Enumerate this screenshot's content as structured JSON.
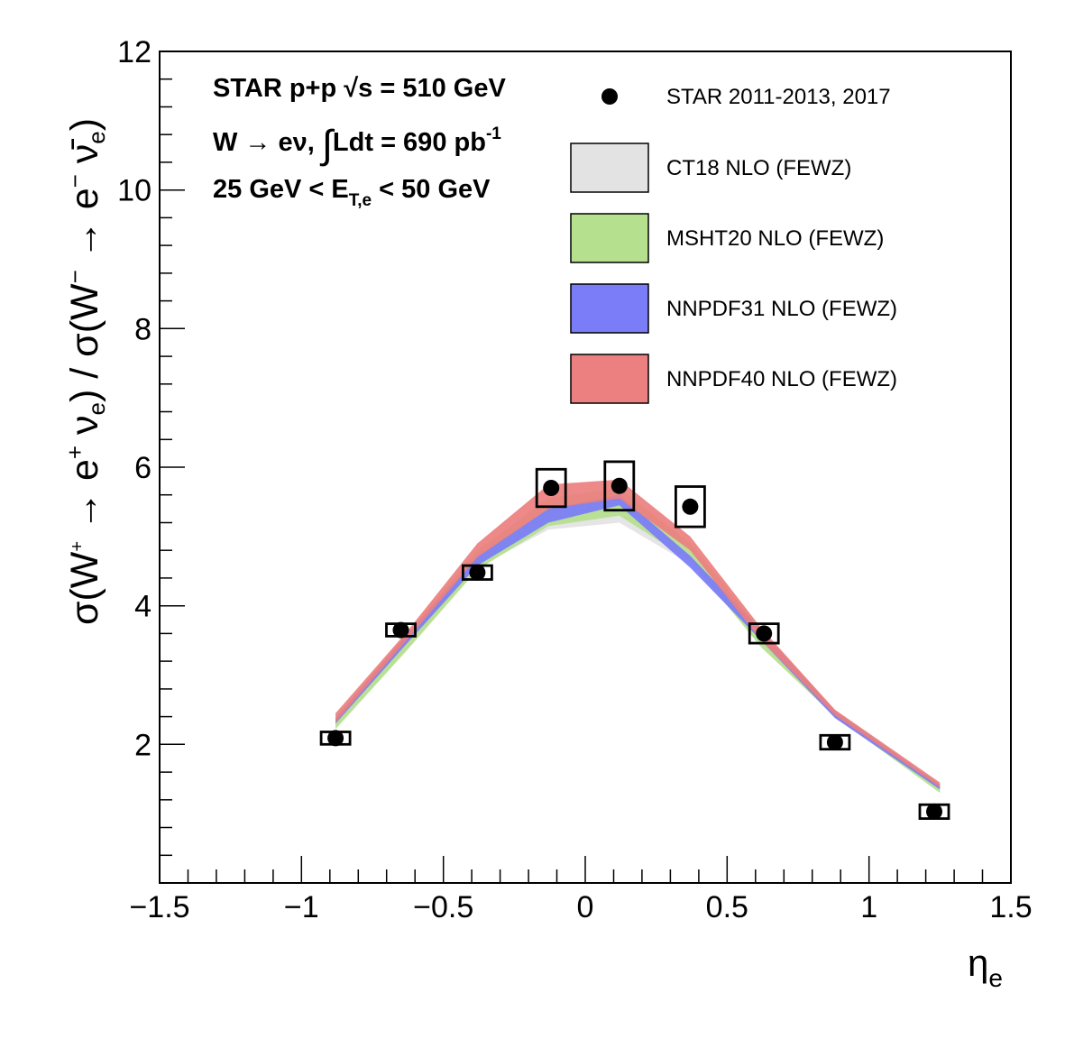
{
  "chart_data": {
    "type": "scatter",
    "xlabel": "η",
    "xlabel_sub": "e",
    "ylabel": "σ(W⁺ → e⁺ ν_e) / σ(W⁻ → e⁻ ν̄_e)",
    "ylabel_parts": {
      "open": "σ(W",
      "wplus_sup": "+",
      "arrow1": " → e",
      "eplus_sup": "+",
      "nu1": " ν",
      "nu1_sub": "e",
      "mid": ") / σ(W",
      "wminus_sup": "−",
      "arrow2": " → e",
      "eminus_sup": "−",
      "nu2": " ν̄",
      "nu2_sub": "e",
      "close": ")"
    },
    "xlim": [
      -1.5,
      1.5
    ],
    "ylim": [
      0,
      12
    ],
    "x_ticks": [
      -1.5,
      -1,
      -0.5,
      0,
      0.5,
      1,
      1.5
    ],
    "x_tick_labels": [
      "−1.5",
      "−1",
      "−0.5",
      "0",
      "0.5",
      "1",
      "1.5"
    ],
    "y_ticks": [
      2,
      4,
      6,
      8,
      10,
      12
    ],
    "y_tick_labels": [
      "2",
      "4",
      "6",
      "8",
      "10",
      "12"
    ],
    "annotations": {
      "line1": "STAR p+p  √s = 510 GeV",
      "line2_a": "W  → eν, ",
      "line2_int": "∫",
      "line2_b": "Ldt = 690 pb",
      "line2_sup": "-1",
      "line3_a": "25 GeV < E",
      "line3_sub": "T,e",
      "line3_b": " < 50 GeV"
    },
    "legend_position": "top-right",
    "data_series": {
      "name": "STAR 2011-2013, 2017",
      "points": [
        {
          "x": -0.88,
          "y": 2.09,
          "sys_lo": 2.0,
          "sys_hi": 2.18
        },
        {
          "x": -0.65,
          "y": 3.65,
          "sys_lo": 3.56,
          "sys_hi": 3.74
        },
        {
          "x": -0.38,
          "y": 4.48,
          "sys_lo": 4.38,
          "sys_hi": 4.58
        },
        {
          "x": -0.12,
          "y": 5.7,
          "sys_lo": 5.43,
          "sys_hi": 5.97
        },
        {
          "x": 0.12,
          "y": 5.73,
          "sys_lo": 5.38,
          "sys_hi": 6.08
        },
        {
          "x": 0.37,
          "y": 5.43,
          "sys_lo": 5.14,
          "sys_hi": 5.72
        },
        {
          "x": 0.63,
          "y": 3.6,
          "sys_lo": 3.46,
          "sys_hi": 3.74
        },
        {
          "x": 0.88,
          "y": 2.03,
          "sys_lo": 1.93,
          "sys_hi": 2.13
        },
        {
          "x": 1.23,
          "y": 1.03,
          "sys_lo": 0.93,
          "sys_hi": 1.13
        }
      ]
    },
    "bands": [
      {
        "name": "CT18 NLO (FEWZ)",
        "color": "#e3e3e3",
        "x": [
          -0.88,
          -0.63,
          -0.38,
          -0.13,
          0.12,
          0.37,
          0.62,
          0.88,
          1.25
        ],
        "lo": [
          2.25,
          3.38,
          4.55,
          5.1,
          5.2,
          4.6,
          3.45,
          2.38,
          1.32
        ],
        "hi": [
          2.38,
          3.58,
          4.8,
          5.5,
          5.65,
          4.9,
          3.65,
          2.48,
          1.4
        ]
      },
      {
        "name": "MSHT20 NLO (FEWZ)",
        "color": "#b5e08e",
        "x": [
          -0.88,
          -0.63,
          -0.38,
          -0.13,
          0.12,
          0.37,
          0.62,
          0.88,
          1.25
        ],
        "lo": [
          2.22,
          3.35,
          4.52,
          5.15,
          5.3,
          4.65,
          3.4,
          2.4,
          1.3
        ],
        "hi": [
          2.38,
          3.58,
          4.8,
          5.55,
          5.7,
          4.9,
          3.65,
          2.5,
          1.4
        ]
      },
      {
        "name": "NNPDF31 NLO (FEWZ)",
        "color": "#7b7cf7",
        "x": [
          -0.88,
          -0.63,
          -0.38,
          -0.13,
          0.12,
          0.37,
          0.62,
          0.88,
          1.25
        ],
        "lo": [
          2.3,
          3.45,
          4.58,
          5.2,
          5.45,
          4.55,
          3.5,
          2.38,
          1.35
        ],
        "hi": [
          2.38,
          3.58,
          4.72,
          5.4,
          5.6,
          4.72,
          3.65,
          2.48,
          1.42
        ]
      },
      {
        "name": "NNPDF40 NLO (FEWZ)",
        "color": "#ec7f7f",
        "x": [
          -0.88,
          -0.63,
          -0.38,
          -0.13,
          0.12,
          0.37,
          0.62,
          0.88,
          1.25
        ],
        "lo": [
          2.32,
          3.5,
          4.7,
          5.4,
          5.55,
          4.8,
          3.5,
          2.42,
          1.38
        ],
        "hi": [
          2.45,
          3.62,
          4.9,
          5.75,
          5.82,
          5.0,
          3.68,
          2.5,
          1.45
        ]
      }
    ]
  }
}
